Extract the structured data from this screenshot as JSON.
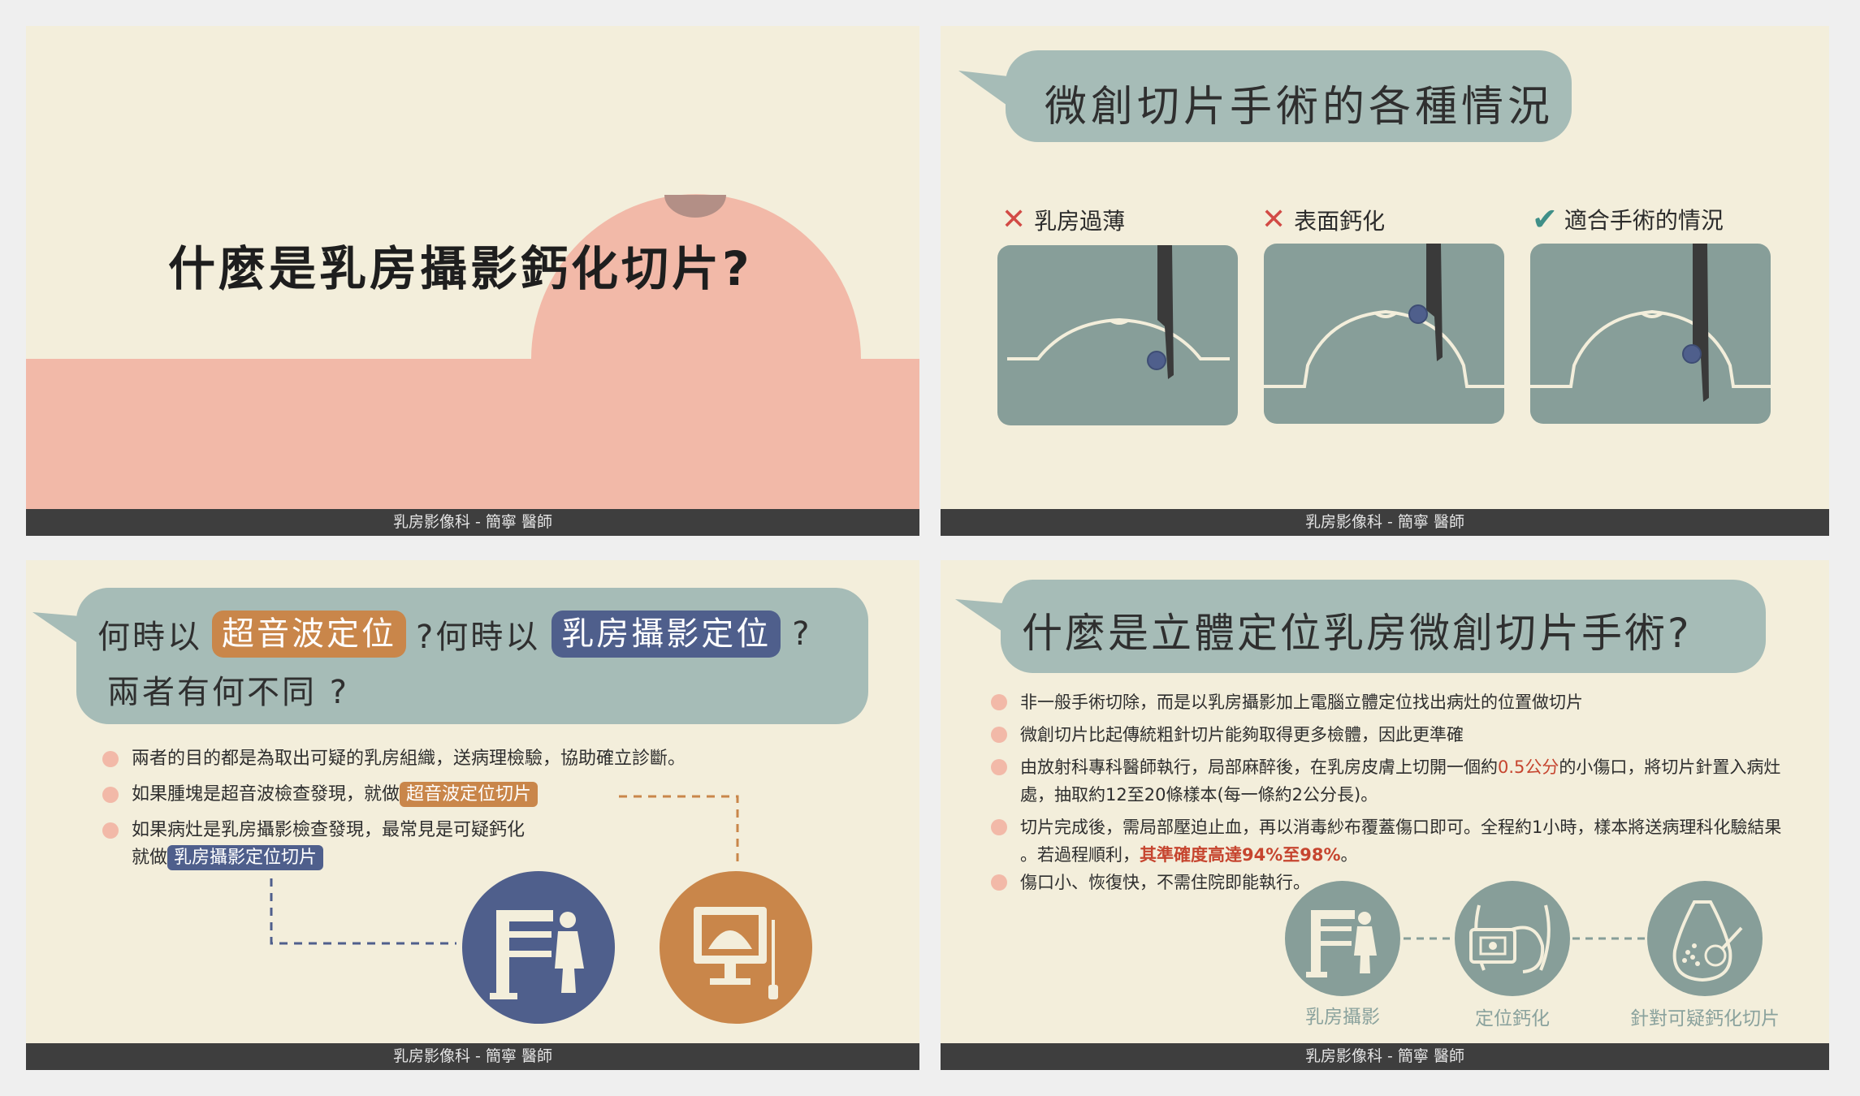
{
  "slides": {
    "s1": {
      "title": "什麼是乳房攝影鈣化切片?",
      "footer": "乳房影像科 - 簡寧 醫師"
    },
    "s2": {
      "title": "微創切片手術的各種情況",
      "panels": [
        {
          "label": "乳房過薄",
          "status": "wrong"
        },
        {
          "label": "表面鈣化",
          "status": "wrong"
        },
        {
          "label": "適合手術的情況",
          "status": "correct"
        }
      ],
      "footer": "乳房影像科 - 簡寧 醫師"
    },
    "s3": {
      "title_part1": "何時以",
      "tag1": "超音波定位",
      "title_part2": "?何時以",
      "tag2": "乳房攝影定位",
      "title_part3": "?",
      "title_line2": "兩者有何不同 ?",
      "bullet1": "兩者的目的都是為取出可疑的乳房組織，送病理檢驗，協助確立診斷。",
      "bullet2_pre": "如果腫塊是超音波檢查發現，就做",
      "bullet2_tag": "超音波定位切片",
      "bullet3_line1": "如果病灶是乳房攝影檢查發現，最常見是可疑鈣化",
      "bullet3_pre": "就做",
      "bullet3_tag": "乳房攝影定位切片",
      "footer": "乳房影像科 - 簡寧 醫師"
    },
    "s4": {
      "title": "什麼是立體定位乳房微創切片手術?",
      "bullet1": "非一般手術切除，而是以乳房攝影加上電腦立體定位找出病灶的位置做切片",
      "bullet2": "微創切片比起傳統粗針切片能夠取得更多檢體，因此更準確",
      "bullet3_a": "由放射科專科醫師執行，局部麻醉後，在乳房皮膚上切開一個約",
      "bullet3_hl": "0.5公分",
      "bullet3_b": "的小傷口，將切片針置入病灶",
      "bullet3_c": "處，抽取約12至20條樣本(每一條約2公分長)。",
      "bullet4_a": "切片完成後，需局部壓迫止血，再以消毒紗布覆蓋傷口即可。全程約1小時，樣本將送病理科化驗結果",
      "bullet4_b": "。若過程順利，",
      "bullet4_hl": "其準確度高達94%至98%",
      "bullet4_c": "。",
      "bullet5": "傷口小、恢復快，不需住院即能執行。",
      "steps": [
        "乳房攝影",
        "定位鈣化",
        "針對可疑鈣化切片"
      ],
      "footer": "乳房影像科 - 簡寧 醫師"
    }
  },
  "colors": {
    "background": "#f3eedb",
    "salmon": "#f2b9a8",
    "teal": "#a6bcb7",
    "panel_teal": "#879e99",
    "orange": "#c9864a",
    "navy": "#4f5f8c",
    "footer": "#3e3e3e",
    "highlight_red": "#c6452f"
  }
}
